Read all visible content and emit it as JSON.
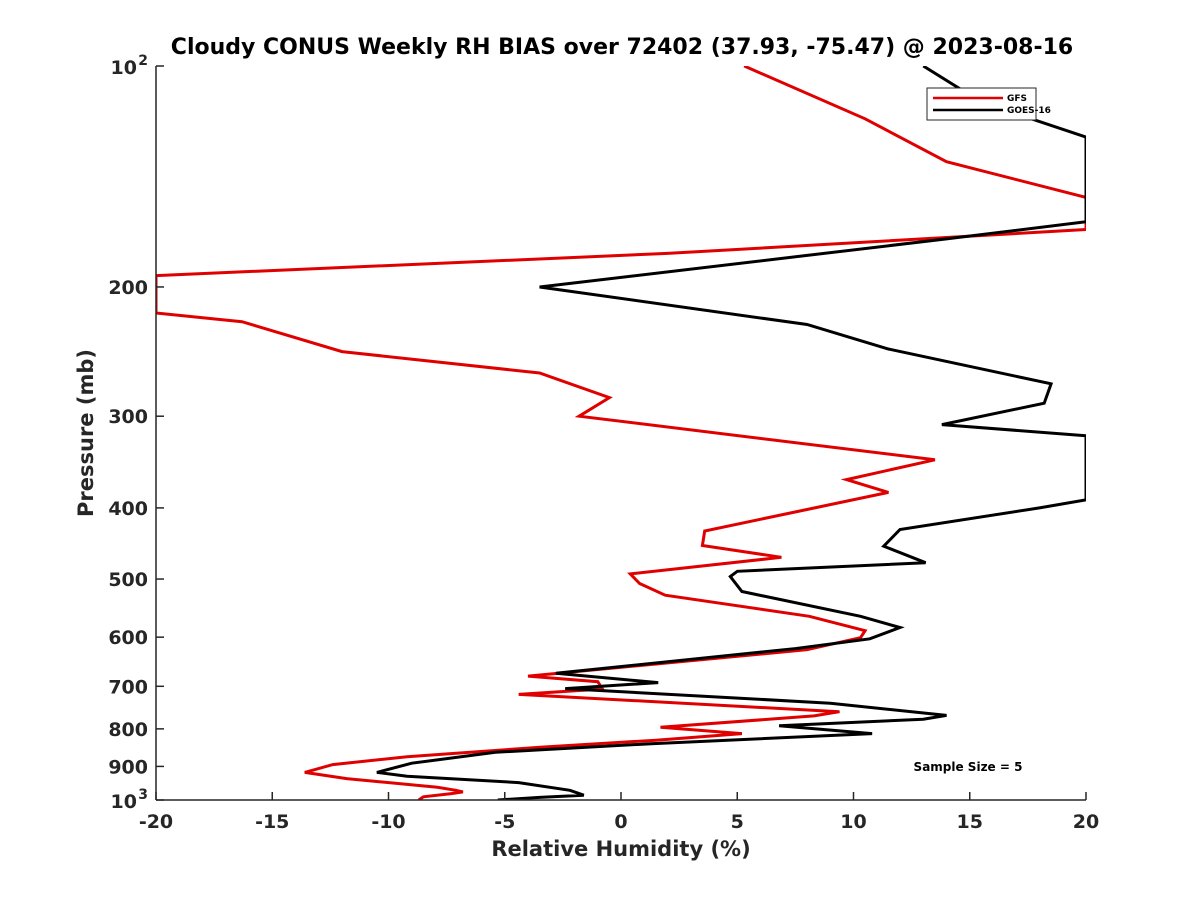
{
  "chart_data": {
    "type": "line",
    "title": "Cloudy CONUS Weekly RH BIAS over 72402 (37.93, -75.47) @ 2023-08-16",
    "xlabel": "Relative Humidity (%)",
    "ylabel": "Pressure (mb)",
    "xlim": [
      -20,
      20
    ],
    "ylim": [
      100,
      1000
    ],
    "y_scale": "log",
    "y_reversed": true,
    "grid": false,
    "legend_position": "top-right",
    "x_ticks": [
      {
        "value": -20,
        "label": "-20"
      },
      {
        "value": -15,
        "label": "-15"
      },
      {
        "value": -10,
        "label": "-10"
      },
      {
        "value": -5,
        "label": "-5"
      },
      {
        "value": 0,
        "label": "0"
      },
      {
        "value": 5,
        "label": "5"
      },
      {
        "value": 10,
        "label": "10"
      },
      {
        "value": 15,
        "label": "15"
      },
      {
        "value": 20,
        "label": "20"
      }
    ],
    "y_ticks": [
      {
        "value": 100,
        "base": "10",
        "exp": "2"
      },
      {
        "value": 200,
        "label": "200"
      },
      {
        "value": 300,
        "label": "300"
      },
      {
        "value": 400,
        "label": "400"
      },
      {
        "value": 500,
        "label": "500"
      },
      {
        "value": 600,
        "label": "600"
      },
      {
        "value": 700,
        "label": "700"
      },
      {
        "value": 800,
        "label": "800"
      },
      {
        "value": 900,
        "label": "900"
      },
      {
        "value": 1000,
        "base": "10",
        "exp": "3"
      }
    ],
    "series": [
      {
        "name": "GFS",
        "color": "#e00000",
        "points": [
          [
            5.3,
            100
          ],
          [
            10.5,
            118
          ],
          [
            14,
            135
          ],
          [
            20,
            151
          ],
          [
            20,
            167
          ],
          [
            2,
            180
          ],
          [
            -20,
            193
          ],
          [
            -20,
            217
          ],
          [
            -16.3,
            223
          ],
          [
            -12,
            245
          ],
          [
            -3.5,
            262
          ],
          [
            -0.5,
            283
          ],
          [
            -1.8,
            300
          ],
          [
            13.5,
            344
          ],
          [
            9.7,
            366
          ],
          [
            11.5,
            381
          ],
          [
            8,
            402
          ],
          [
            3.6,
            430
          ],
          [
            3.5,
            450
          ],
          [
            6.9,
            467
          ],
          [
            0.4,
            492
          ],
          [
            0.8,
            507
          ],
          [
            1.9,
            526
          ],
          [
            8.1,
            562
          ],
          [
            10.5,
            588
          ],
          [
            10.3,
            601
          ],
          [
            8,
            624
          ],
          [
            -4,
            678
          ],
          [
            -1,
            690
          ],
          [
            -0.8,
            706
          ],
          [
            -4.4,
            718
          ],
          [
            9.4,
            758
          ],
          [
            8.3,
            768
          ],
          [
            1.7,
            796
          ],
          [
            5.2,
            812
          ],
          [
            1.5,
            829
          ],
          [
            -3.4,
            847
          ],
          [
            -9.2,
            873
          ],
          [
            -12.4,
            895
          ],
          [
            -13.6,
            917
          ],
          [
            -11.8,
            935
          ],
          [
            -7.9,
            961
          ],
          [
            -7.1,
            970
          ],
          [
            -6.8,
            975
          ],
          [
            -7.3,
            980
          ],
          [
            -8.5,
            990
          ],
          [
            -8.7,
            1000
          ]
        ]
      },
      {
        "name": "GOES-16",
        "color": "#000000",
        "points": [
          [
            13,
            100
          ],
          [
            15.5,
            112
          ],
          [
            20,
            125
          ],
          [
            20,
            163
          ],
          [
            14,
            172
          ],
          [
            -3.5,
            200
          ],
          [
            8,
            225
          ],
          [
            11.5,
            243
          ],
          [
            18.5,
            271
          ],
          [
            18.2,
            288
          ],
          [
            13.8,
            308
          ],
          [
            20,
            319
          ],
          [
            20,
            390
          ],
          [
            18,
            400
          ],
          [
            12,
            428
          ],
          [
            11.3,
            451
          ],
          [
            13.1,
            475
          ],
          [
            5,
            488
          ],
          [
            4.7,
            496
          ],
          [
            5.2,
            520
          ],
          [
            10.3,
            562
          ],
          [
            12,
            582
          ],
          [
            10.7,
            603
          ],
          [
            7.5,
            622
          ],
          [
            -2.8,
            672
          ],
          [
            1.6,
            692
          ],
          [
            -2.4,
            705
          ],
          [
            9,
            738
          ],
          [
            14,
            767
          ],
          [
            13,
            776
          ],
          [
            6.8,
            792
          ],
          [
            10.8,
            812
          ],
          [
            1.3,
            838
          ],
          [
            -5.4,
            861
          ],
          [
            -9,
            891
          ],
          [
            -10.5,
            917
          ],
          [
            -9.2,
            928
          ],
          [
            -4.4,
            947
          ],
          [
            -2.2,
            970
          ],
          [
            -1.6,
            985
          ],
          [
            -3.5,
            992
          ],
          [
            -5.3,
            1000
          ]
        ]
      }
    ],
    "legend": [
      {
        "label": "GFS",
        "color": "#e00000"
      },
      {
        "label": "GOES-16",
        "color": "#000000"
      }
    ],
    "annotations": [
      {
        "text": "Sample Size = 5"
      }
    ]
  }
}
